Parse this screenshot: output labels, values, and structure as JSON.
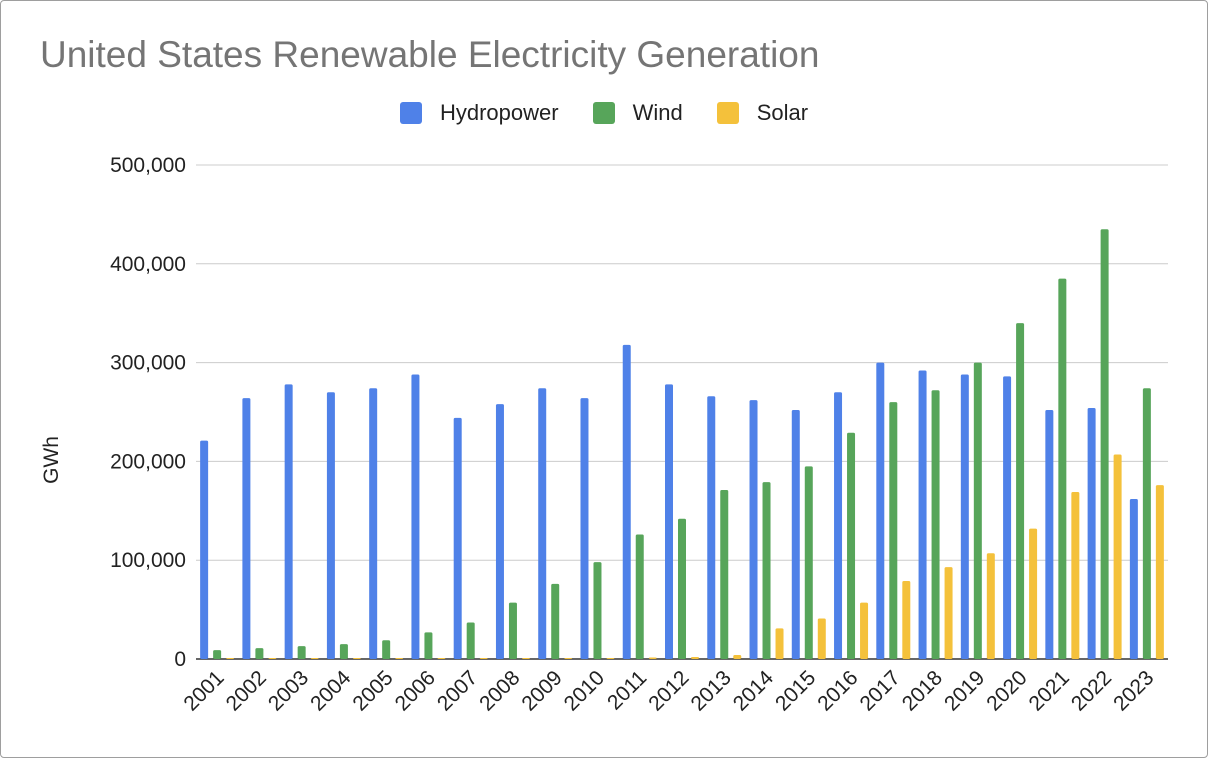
{
  "chart_data": {
    "type": "bar",
    "title": "United States Renewable Electricity Generation",
    "xlabel": "",
    "ylabel": "GWh",
    "ylim": [
      0,
      500000
    ],
    "yticks": [
      0,
      100000,
      200000,
      300000,
      400000,
      500000
    ],
    "ytick_labels": [
      "0",
      "100,000",
      "200,000",
      "300,000",
      "400,000",
      "500,000"
    ],
    "grid": true,
    "legend_position": "top-center",
    "categories": [
      "2001",
      "2002",
      "2003",
      "2004",
      "2005",
      "2006",
      "2007",
      "2008",
      "2009",
      "2010",
      "2011",
      "2012",
      "2013",
      "2014",
      "2015",
      "2016",
      "2017",
      "2018",
      "2019",
      "2020",
      "2021",
      "2022",
      "2023"
    ],
    "series": [
      {
        "name": "Hydropower",
        "color": "#4f81e8",
        "values": [
          221000,
          264000,
          278000,
          270000,
          274000,
          288000,
          244000,
          258000,
          274000,
          264000,
          318000,
          278000,
          266000,
          262000,
          252000,
          270000,
          300000,
          292000,
          288000,
          286000,
          252000,
          254000,
          162000
        ]
      },
      {
        "name": "Wind",
        "color": "#57a55a",
        "values": [
          9000,
          11000,
          13000,
          15000,
          19000,
          27000,
          37000,
          57000,
          76000,
          98000,
          126000,
          142000,
          171000,
          179000,
          195000,
          229000,
          260000,
          272000,
          300000,
          340000,
          385000,
          435000,
          274000
        ]
      },
      {
        "name": "Solar",
        "color": "#f4c13b",
        "values": [
          1000,
          1000,
          1000,
          1000,
          1000,
          1000,
          1000,
          1000,
          1000,
          1000,
          1500,
          2000,
          4000,
          31000,
          41000,
          57000,
          79000,
          93000,
          107000,
          132000,
          169000,
          207000,
          176000
        ]
      }
    ]
  }
}
